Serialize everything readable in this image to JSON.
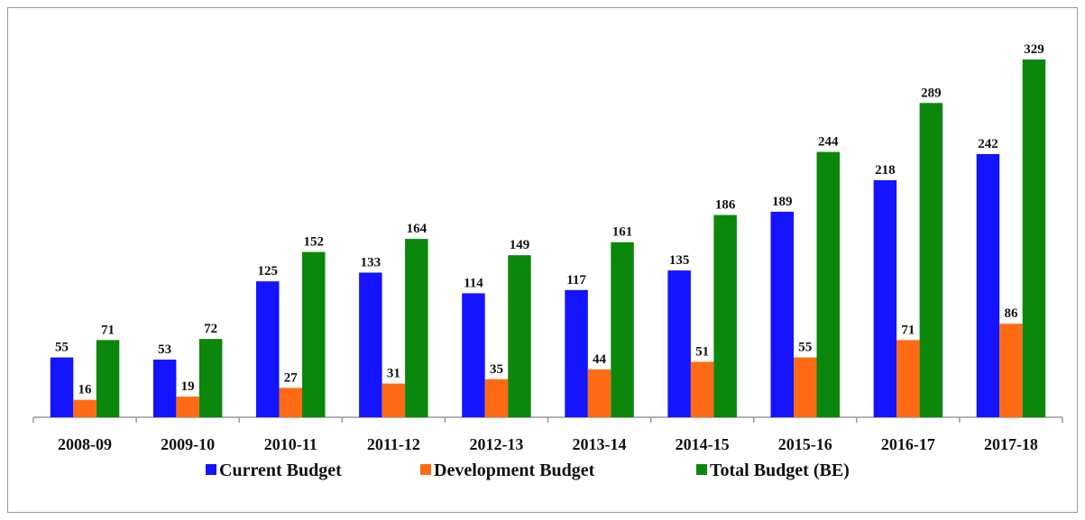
{
  "chart_data": {
    "type": "bar",
    "categories": [
      "2008-09",
      "2009-10",
      "2010-11",
      "2011-12",
      "2012-13",
      "2013-14",
      "2014-15",
      "2015-16",
      "2016-17",
      "2017-18"
    ],
    "series": [
      {
        "name": "Current Budget",
        "color": "#1414ff",
        "values": [
          55,
          53,
          125,
          133,
          114,
          117,
          135,
          189,
          218,
          242
        ]
      },
      {
        "name": "Development Budget",
        "color": "#ff6b14",
        "values": [
          16,
          19,
          27,
          31,
          35,
          44,
          51,
          55,
          71,
          86
        ]
      },
      {
        "name": "Total Budget (BE)",
        "color": "#0b870b",
        "values": [
          71,
          72,
          152,
          164,
          149,
          161,
          186,
          244,
          289,
          329
        ]
      }
    ]
  }
}
